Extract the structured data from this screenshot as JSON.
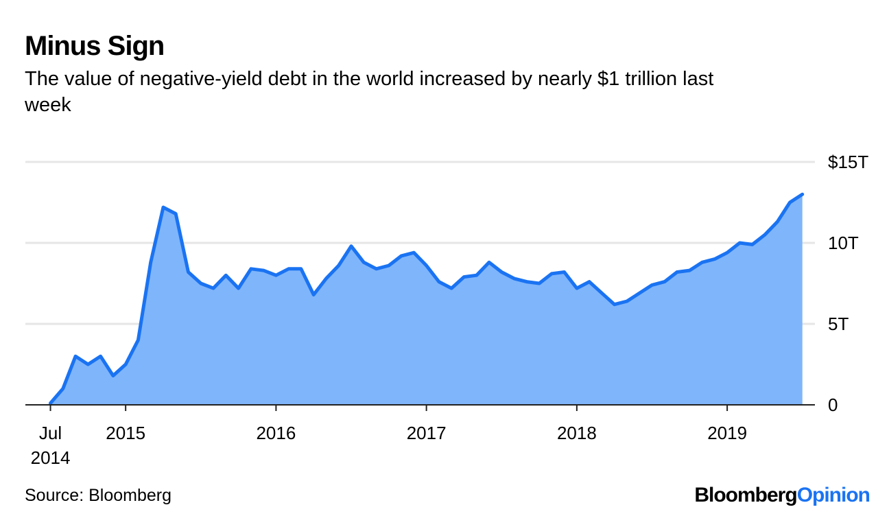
{
  "chart_data": {
    "type": "area",
    "title": "Minus Sign",
    "subtitle": [
      "The value of negative-yield debt in the world increased by nearly $1 trillion last",
      "week"
    ],
    "source": "Source: Bloomberg",
    "brand": [
      "Bloomberg",
      "Opinion"
    ],
    "x": [
      "2014-07",
      "2014-08",
      "2014-09",
      "2014-10",
      "2014-11",
      "2014-12",
      "2015-01",
      "2015-02",
      "2015-03",
      "2015-04",
      "2015-05",
      "2015-06",
      "2015-07",
      "2015-08",
      "2015-09",
      "2015-10",
      "2015-11",
      "2015-12",
      "2016-01",
      "2016-02",
      "2016-03",
      "2016-04",
      "2016-05",
      "2016-06",
      "2016-07",
      "2016-08",
      "2016-09",
      "2016-10",
      "2016-11",
      "2016-12",
      "2017-01",
      "2017-02",
      "2017-03",
      "2017-04",
      "2017-05",
      "2017-06",
      "2017-07",
      "2017-08",
      "2017-09",
      "2017-10",
      "2017-11",
      "2017-12",
      "2018-01",
      "2018-02",
      "2018-03",
      "2018-04",
      "2018-05",
      "2018-06",
      "2018-07",
      "2018-08",
      "2018-09",
      "2018-10",
      "2018-11",
      "2018-12",
      "2019-01",
      "2019-02",
      "2019-03",
      "2019-04",
      "2019-05",
      "2019-06",
      "2019-07"
    ],
    "values": [
      0.1,
      1.0,
      3.0,
      2.5,
      3.0,
      1.8,
      2.5,
      4.0,
      8.8,
      12.2,
      11.8,
      8.2,
      7.5,
      7.2,
      8.0,
      7.2,
      8.4,
      8.3,
      8.0,
      8.4,
      8.4,
      6.8,
      7.8,
      8.6,
      9.8,
      8.8,
      8.4,
      8.6,
      9.2,
      9.4,
      8.6,
      7.6,
      7.2,
      7.9,
      8.0,
      8.8,
      8.2,
      7.8,
      7.6,
      7.5,
      8.1,
      8.2,
      7.2,
      7.6,
      6.9,
      6.2,
      6.4,
      6.9,
      7.4,
      7.6,
      8.2,
      8.3,
      8.8,
      9.0,
      9.4,
      10.0,
      9.9,
      10.5,
      11.3,
      12.5,
      13.0
    ],
    "color": "#1a73f2",
    "fill": "#7fb5fb",
    "xlim": [
      "2014-05",
      "2019-08"
    ],
    "xticks": [
      {
        "value": "2014-07",
        "label": [
          "Jul",
          "2014"
        ]
      },
      {
        "value": "2015-01",
        "label": "2015"
      },
      {
        "value": "2016-01",
        "label": "2016"
      },
      {
        "value": "2017-01",
        "label": "2017"
      },
      {
        "value": "2018-01",
        "label": "2018"
      },
      {
        "value": "2019-01",
        "label": "2019"
      }
    ],
    "ylim": [
      0,
      15
    ],
    "yticks": [
      0,
      {
        "value": 5,
        "label": "5T"
      },
      {
        "value": 10,
        "label": "10T"
      },
      {
        "value": 15,
        "label": "$15T"
      }
    ],
    "grid": true
  }
}
